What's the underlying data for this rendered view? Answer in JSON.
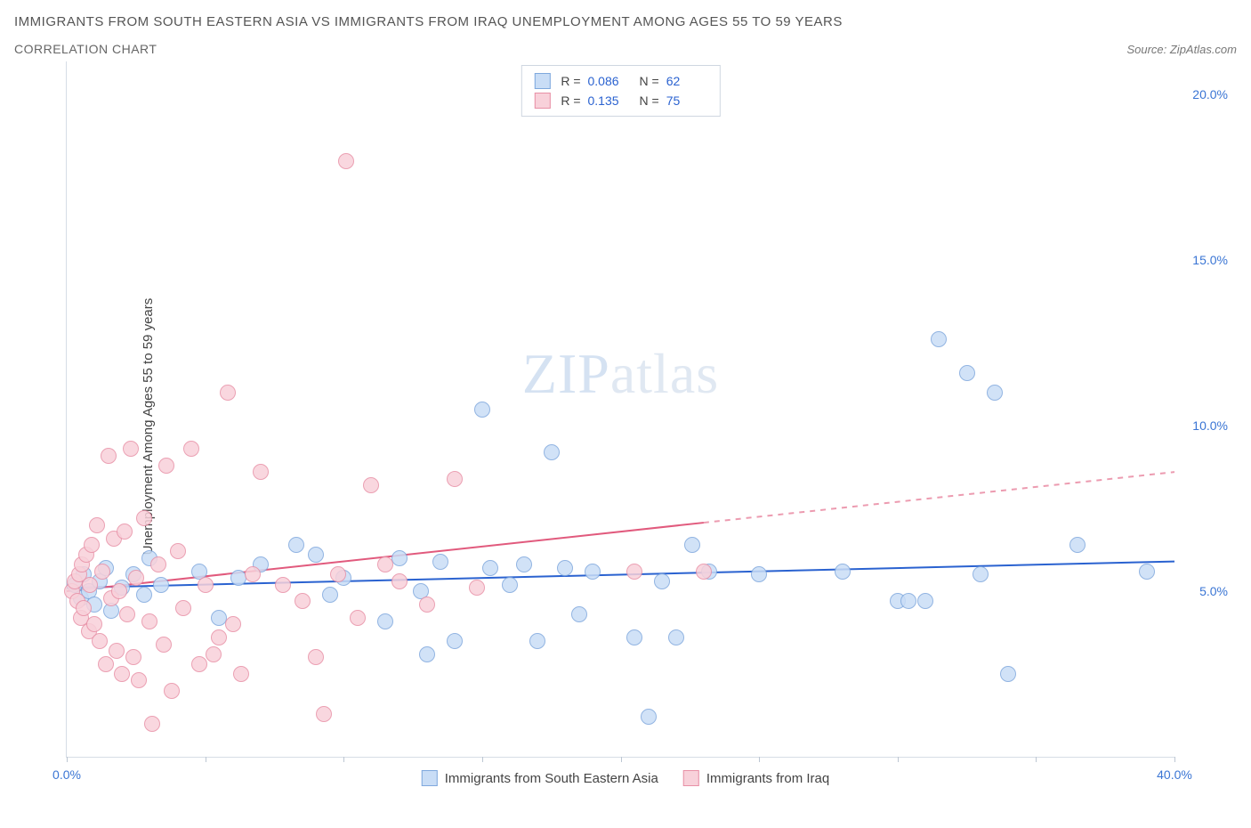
{
  "title": "IMMIGRANTS FROM SOUTH EASTERN ASIA VS IMMIGRANTS FROM IRAQ UNEMPLOYMENT AMONG AGES 55 TO 59 YEARS",
  "subtitle": "CORRELATION CHART",
  "source_prefix": "Source: ",
  "source": "ZipAtlas.com",
  "y_axis_title": "Unemployment Among Ages 55 to 59 years",
  "watermark_a": "ZIP",
  "watermark_b": "atlas",
  "chart": {
    "type": "scatter",
    "xlim": [
      0,
      40
    ],
    "ylim": [
      0,
      21
    ],
    "y_ticks": [
      5,
      10,
      15,
      20
    ],
    "y_tick_labels": [
      "5.0%",
      "10.0%",
      "15.0%",
      "20.0%"
    ],
    "x_ticks": [
      0,
      5,
      10,
      15,
      20,
      25,
      30,
      35,
      40
    ],
    "x_tick_labels_shown": {
      "0": "0.0%",
      "40": "40.0%"
    },
    "y_tick_color": "#3a75d4",
    "x_tick_color": "#3a75d4",
    "axis_color": "#d6dde6",
    "marker_radius": 9,
    "series": [
      {
        "key": "sea",
        "label": "Immigrants from South Eastern Asia",
        "fill": "#c9ddf6",
        "stroke": "#7fa8dd",
        "trend_color": "#2a62d0",
        "r_value": "0.086",
        "n_value": "62",
        "trend": {
          "x1": 0,
          "y1": 5.1,
          "x2": 40,
          "y2": 5.9,
          "solid_until_x": 40
        },
        "points": [
          [
            0.3,
            5.2
          ],
          [
            0.5,
            4.8
          ],
          [
            0.6,
            5.5
          ],
          [
            0.8,
            5.0
          ],
          [
            1.0,
            4.6
          ],
          [
            1.2,
            5.3
          ],
          [
            1.4,
            5.7
          ],
          [
            1.6,
            4.4
          ],
          [
            2.0,
            5.1
          ],
          [
            2.4,
            5.5
          ],
          [
            2.8,
            4.9
          ],
          [
            3.0,
            6.0
          ],
          [
            3.4,
            5.2
          ],
          [
            4.8,
            5.6
          ],
          [
            5.5,
            4.2
          ],
          [
            6.2,
            5.4
          ],
          [
            7.0,
            5.8
          ],
          [
            8.3,
            6.4
          ],
          [
            9.0,
            6.1
          ],
          [
            9.5,
            4.9
          ],
          [
            10.0,
            5.4
          ],
          [
            11.5,
            4.1
          ],
          [
            12.0,
            6.0
          ],
          [
            12.8,
            5.0
          ],
          [
            13.0,
            3.1
          ],
          [
            13.5,
            5.9
          ],
          [
            14.0,
            3.5
          ],
          [
            15.0,
            10.5
          ],
          [
            15.3,
            5.7
          ],
          [
            16.0,
            5.2
          ],
          [
            16.5,
            5.8
          ],
          [
            17.0,
            3.5
          ],
          [
            17.5,
            9.2
          ],
          [
            18.0,
            5.7
          ],
          [
            18.5,
            4.3
          ],
          [
            19.0,
            5.6
          ],
          [
            20.5,
            3.6
          ],
          [
            21.0,
            1.2
          ],
          [
            21.5,
            5.3
          ],
          [
            22.0,
            3.6
          ],
          [
            22.6,
            6.4
          ],
          [
            23.2,
            5.6
          ],
          [
            25.0,
            5.5
          ],
          [
            28.0,
            5.6
          ],
          [
            30.0,
            4.7
          ],
          [
            30.4,
            4.7
          ],
          [
            31.0,
            4.7
          ],
          [
            31.5,
            12.6
          ],
          [
            32.5,
            11.6
          ],
          [
            33.0,
            5.5
          ],
          [
            33.5,
            11.0
          ],
          [
            34.0,
            2.5
          ],
          [
            36.5,
            6.4
          ],
          [
            39.0,
            5.6
          ]
        ]
      },
      {
        "key": "iraq",
        "label": "Immigrants from Iraq",
        "fill": "#f8d1da",
        "stroke": "#e890a6",
        "trend_color": "#e15a7d",
        "r_value": "0.135",
        "n_value": "75",
        "trend": {
          "x1": 0,
          "y1": 5.0,
          "x2": 40,
          "y2": 8.6,
          "solid_until_x": 23
        },
        "points": [
          [
            0.2,
            5.0
          ],
          [
            0.3,
            5.3
          ],
          [
            0.4,
            4.7
          ],
          [
            0.45,
            5.5
          ],
          [
            0.5,
            4.2
          ],
          [
            0.55,
            5.8
          ],
          [
            0.6,
            4.5
          ],
          [
            0.7,
            6.1
          ],
          [
            0.8,
            3.8
          ],
          [
            0.85,
            5.2
          ],
          [
            0.9,
            6.4
          ],
          [
            1.0,
            4.0
          ],
          [
            1.1,
            7.0
          ],
          [
            1.2,
            3.5
          ],
          [
            1.3,
            5.6
          ],
          [
            1.4,
            2.8
          ],
          [
            1.5,
            9.1
          ],
          [
            1.6,
            4.8
          ],
          [
            1.7,
            6.6
          ],
          [
            1.8,
            3.2
          ],
          [
            1.9,
            5.0
          ],
          [
            2.0,
            2.5
          ],
          [
            2.1,
            6.8
          ],
          [
            2.2,
            4.3
          ],
          [
            2.3,
            9.3
          ],
          [
            2.4,
            3.0
          ],
          [
            2.5,
            5.4
          ],
          [
            2.6,
            2.3
          ],
          [
            2.8,
            7.2
          ],
          [
            3.0,
            4.1
          ],
          [
            3.1,
            1.0
          ],
          [
            3.3,
            5.8
          ],
          [
            3.5,
            3.4
          ],
          [
            3.6,
            8.8
          ],
          [
            3.8,
            2.0
          ],
          [
            4.0,
            6.2
          ],
          [
            4.2,
            4.5
          ],
          [
            4.5,
            9.3
          ],
          [
            4.8,
            2.8
          ],
          [
            5.0,
            5.2
          ],
          [
            5.3,
            3.1
          ],
          [
            5.5,
            3.6
          ],
          [
            5.8,
            11.0
          ],
          [
            6.0,
            4.0
          ],
          [
            6.3,
            2.5
          ],
          [
            6.7,
            5.5
          ],
          [
            7.0,
            8.6
          ],
          [
            7.8,
            5.2
          ],
          [
            8.5,
            4.7
          ],
          [
            9.0,
            3.0
          ],
          [
            9.3,
            1.3
          ],
          [
            9.8,
            5.5
          ],
          [
            10.1,
            18.0
          ],
          [
            10.5,
            4.2
          ],
          [
            11.0,
            8.2
          ],
          [
            11.5,
            5.8
          ],
          [
            12.0,
            5.3
          ],
          [
            13.0,
            4.6
          ],
          [
            14.0,
            8.4
          ],
          [
            14.8,
            5.1
          ],
          [
            20.5,
            5.6
          ],
          [
            23.0,
            5.6
          ]
        ]
      }
    ]
  },
  "legend_labels": {
    "r": "R =",
    "n": "N ="
  }
}
